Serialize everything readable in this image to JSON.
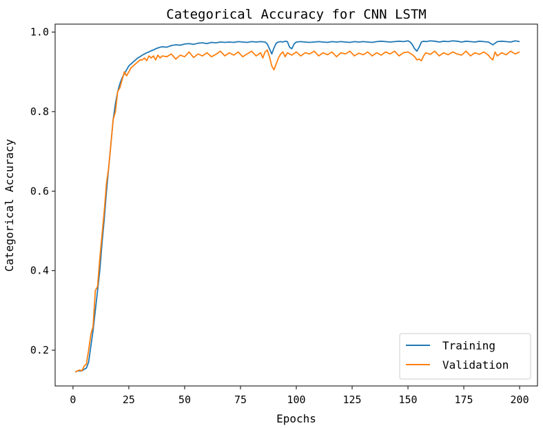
{
  "chart_data": {
    "type": "line",
    "title": "Categorical Accuracy for CNN LSTM",
    "xlabel": "Epochs",
    "ylabel": "Categorical Accuracy",
    "xlim": [
      -8,
      208
    ],
    "ylim": [
      0.11,
      1.02
    ],
    "xticks": [
      0,
      25,
      50,
      75,
      100,
      125,
      150,
      175,
      200
    ],
    "yticks": [
      0.2,
      0.4,
      0.6,
      0.8,
      1.0
    ],
    "grid": false,
    "legend_position": "bottom-right",
    "series": [
      {
        "name": "Training",
        "color": "#1f77b4",
        "x": [
          1,
          2,
          3,
          4,
          5,
          6,
          7,
          8,
          9,
          10,
          11,
          12,
          13,
          14,
          15,
          16,
          17,
          18,
          19,
          20,
          21,
          22,
          23,
          24,
          25,
          26,
          27,
          28,
          29,
          30,
          31,
          32,
          33,
          34,
          35,
          36,
          37,
          38,
          39,
          40,
          42,
          44,
          46,
          48,
          50,
          52,
          54,
          56,
          58,
          60,
          62,
          64,
          66,
          68,
          70,
          72,
          74,
          76,
          78,
          80,
          82,
          84,
          86,
          87,
          88,
          89,
          90,
          91,
          92,
          93,
          94,
          95,
          96,
          97,
          98,
          99,
          100,
          102,
          104,
          106,
          108,
          110,
          112,
          114,
          116,
          118,
          120,
          122,
          124,
          126,
          128,
          130,
          132,
          134,
          136,
          138,
          140,
          142,
          144,
          146,
          148,
          150,
          151,
          152,
          153,
          154,
          155,
          156,
          157,
          158,
          160,
          162,
          164,
          166,
          168,
          170,
          172,
          174,
          176,
          178,
          180,
          182,
          184,
          186,
          188,
          190,
          192,
          194,
          196,
          198,
          200
        ],
        "y": [
          0.145,
          0.148,
          0.148,
          0.148,
          0.152,
          0.155,
          0.17,
          0.21,
          0.25,
          0.3,
          0.35,
          0.4,
          0.47,
          0.53,
          0.6,
          0.66,
          0.72,
          0.78,
          0.82,
          0.85,
          0.87,
          0.885,
          0.895,
          0.905,
          0.915,
          0.92,
          0.925,
          0.93,
          0.935,
          0.938,
          0.942,
          0.945,
          0.948,
          0.95,
          0.953,
          0.955,
          0.958,
          0.96,
          0.962,
          0.963,
          0.962,
          0.966,
          0.968,
          0.967,
          0.97,
          0.971,
          0.969,
          0.972,
          0.973,
          0.971,
          0.974,
          0.973,
          0.975,
          0.974,
          0.975,
          0.974,
          0.976,
          0.975,
          0.974,
          0.976,
          0.975,
          0.976,
          0.975,
          0.97,
          0.958,
          0.945,
          0.96,
          0.972,
          0.975,
          0.976,
          0.975,
          0.977,
          0.976,
          0.962,
          0.958,
          0.97,
          0.975,
          0.976,
          0.975,
          0.974,
          0.975,
          0.976,
          0.975,
          0.974,
          0.976,
          0.975,
          0.976,
          0.975,
          0.974,
          0.976,
          0.975,
          0.976,
          0.975,
          0.974,
          0.976,
          0.977,
          0.976,
          0.975,
          0.976,
          0.977,
          0.976,
          0.978,
          0.975,
          0.968,
          0.958,
          0.952,
          0.962,
          0.975,
          0.977,
          0.976,
          0.978,
          0.977,
          0.975,
          0.977,
          0.976,
          0.978,
          0.977,
          0.975,
          0.977,
          0.976,
          0.975,
          0.977,
          0.976,
          0.975,
          0.968,
          0.976,
          0.977,
          0.976,
          0.975,
          0.978,
          0.976
        ]
      },
      {
        "name": "Validation",
        "color": "#ff7f0e",
        "x": [
          1,
          2,
          3,
          4,
          5,
          6,
          7,
          8,
          9,
          10,
          11,
          12,
          13,
          14,
          15,
          16,
          17,
          18,
          19,
          20,
          21,
          22,
          23,
          24,
          25,
          26,
          27,
          28,
          29,
          30,
          31,
          32,
          33,
          34,
          35,
          36,
          37,
          38,
          39,
          40,
          42,
          44,
          46,
          48,
          50,
          52,
          54,
          56,
          58,
          60,
          62,
          64,
          66,
          68,
          70,
          72,
          74,
          76,
          78,
          80,
          82,
          84,
          85,
          86,
          87,
          88,
          89,
          90,
          91,
          92,
          93,
          94,
          95,
          96,
          98,
          100,
          102,
          104,
          106,
          108,
          110,
          112,
          114,
          116,
          118,
          120,
          122,
          124,
          126,
          128,
          130,
          132,
          134,
          136,
          138,
          140,
          142,
          144,
          146,
          148,
          150,
          152,
          153,
          154,
          155,
          156,
          157,
          158,
          160,
          162,
          164,
          166,
          168,
          170,
          172,
          174,
          176,
          178,
          180,
          182,
          184,
          186,
          187,
          188,
          189,
          190,
          192,
          194,
          196,
          198,
          200
        ],
        "y": [
          0.145,
          0.148,
          0.15,
          0.148,
          0.16,
          0.165,
          0.2,
          0.24,
          0.26,
          0.35,
          0.36,
          0.43,
          0.49,
          0.55,
          0.62,
          0.66,
          0.72,
          0.78,
          0.8,
          0.85,
          0.86,
          0.88,
          0.9,
          0.89,
          0.9,
          0.91,
          0.915,
          0.92,
          0.925,
          0.93,
          0.93,
          0.935,
          0.928,
          0.94,
          0.935,
          0.94,
          0.93,
          0.942,
          0.935,
          0.94,
          0.938,
          0.945,
          0.932,
          0.942,
          0.938,
          0.95,
          0.936,
          0.945,
          0.94,
          0.948,
          0.938,
          0.944,
          0.952,
          0.94,
          0.948,
          0.942,
          0.95,
          0.938,
          0.945,
          0.952,
          0.94,
          0.948,
          0.935,
          0.95,
          0.955,
          0.938,
          0.915,
          0.905,
          0.92,
          0.935,
          0.945,
          0.95,
          0.938,
          0.948,
          0.942,
          0.95,
          0.94,
          0.948,
          0.945,
          0.952,
          0.94,
          0.948,
          0.943,
          0.95,
          0.938,
          0.948,
          0.945,
          0.952,
          0.94,
          0.947,
          0.943,
          0.95,
          0.94,
          0.948,
          0.942,
          0.95,
          0.945,
          0.952,
          0.94,
          0.948,
          0.95,
          0.943,
          0.938,
          0.93,
          0.932,
          0.928,
          0.94,
          0.948,
          0.944,
          0.952,
          0.94,
          0.948,
          0.943,
          0.95,
          0.945,
          0.942,
          0.952,
          0.94,
          0.948,
          0.944,
          0.95,
          0.942,
          0.935,
          0.93,
          0.95,
          0.94,
          0.948,
          0.943,
          0.952,
          0.945,
          0.95
        ]
      }
    ]
  }
}
